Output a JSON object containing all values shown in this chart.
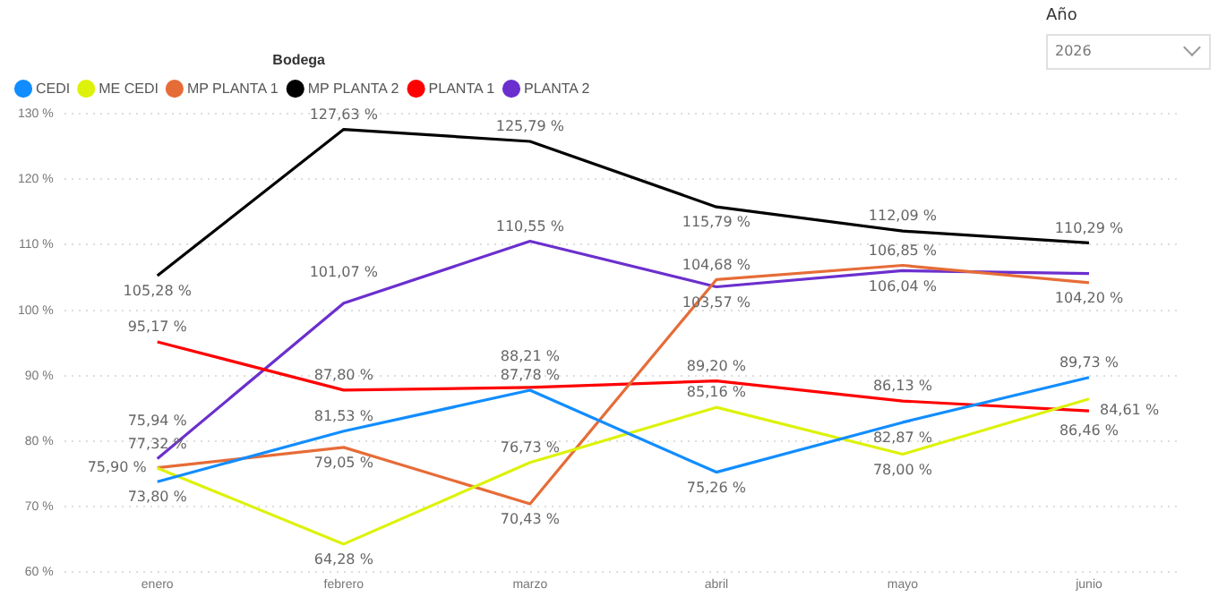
{
  "chart_data": {
    "type": "line",
    "categories": [
      "enero",
      "febrero",
      "marzo",
      "abril",
      "mayo",
      "junio"
    ],
    "legend_title": "Bodega",
    "legend": "top left",
    "grid": "y",
    "marker": "none",
    "line_style": "solid",
    "ylim": [
      60,
      130
    ],
    "yticks": [
      {
        "value": 60,
        "label": "60 %"
      },
      {
        "value": 70,
        "label": "70 %"
      },
      {
        "value": 80,
        "label": "80 %"
      },
      {
        "value": 90,
        "label": "90 %"
      },
      {
        "value": 100,
        "label": "100 %"
      },
      {
        "value": 110,
        "label": "110 %"
      },
      {
        "value": 120,
        "label": "120 %"
      },
      {
        "value": 130,
        "label": "130 %"
      }
    ],
    "annotations": [
      "Año",
      "2026"
    ],
    "series": [
      {
        "name": "CEDI",
        "color": "#118dff",
        "values": [
          73.8,
          81.53,
          87.78,
          75.26,
          82.87,
          89.73
        ],
        "value_labels": [
          "73,80 %",
          "81,53 %",
          "87,78 %",
          "75,26 %",
          "82,87 %",
          "89,73 %"
        ]
      },
      {
        "name": "ME CEDI",
        "color": "#ddf20a",
        "values": [
          75.9,
          64.28,
          76.73,
          85.16,
          78.0,
          86.46
        ],
        "value_labels": [
          "75,90 %",
          "64,28 %",
          "76,73 %",
          "85,16 %",
          "78,00 %",
          "86,46 %"
        ]
      },
      {
        "name": "MP PLANTA 1",
        "color": "#e66c37",
        "values": [
          75.94,
          79.05,
          70.43,
          104.68,
          106.85,
          104.2
        ],
        "value_labels": [
          "75,94 %",
          "79,05 %",
          "70,43 %",
          "104,68 %",
          "106,85 %",
          "104,20 %"
        ]
      },
      {
        "name": "MP PLANTA 2",
        "color": "#000000",
        "values": [
          105.28,
          127.63,
          125.79,
          115.79,
          112.09,
          110.29
        ],
        "value_labels": [
          "105,28 %",
          "127,63 %",
          "125,79 %",
          "115,79 %",
          "112,09 %",
          "110,29 %"
        ]
      },
      {
        "name": "PLANTA 1",
        "color": "#ff0000",
        "values": [
          95.17,
          87.8,
          88.21,
          89.2,
          86.13,
          84.61
        ],
        "value_labels": [
          "95,17 %",
          "87,80 %",
          "88,21 %",
          "89,20 %",
          "86,13 %",
          "84,61 %"
        ]
      },
      {
        "name": "PLANTA 2",
        "color": "#6b2fce",
        "values": [
          77.32,
          101.07,
          110.55,
          103.57,
          106.04,
          105.6
        ],
        "value_labels": [
          "77,32 %",
          "101,07 %",
          "110,55 %",
          "103,57 %",
          "106,04 %",
          null
        ]
      }
    ]
  }
}
